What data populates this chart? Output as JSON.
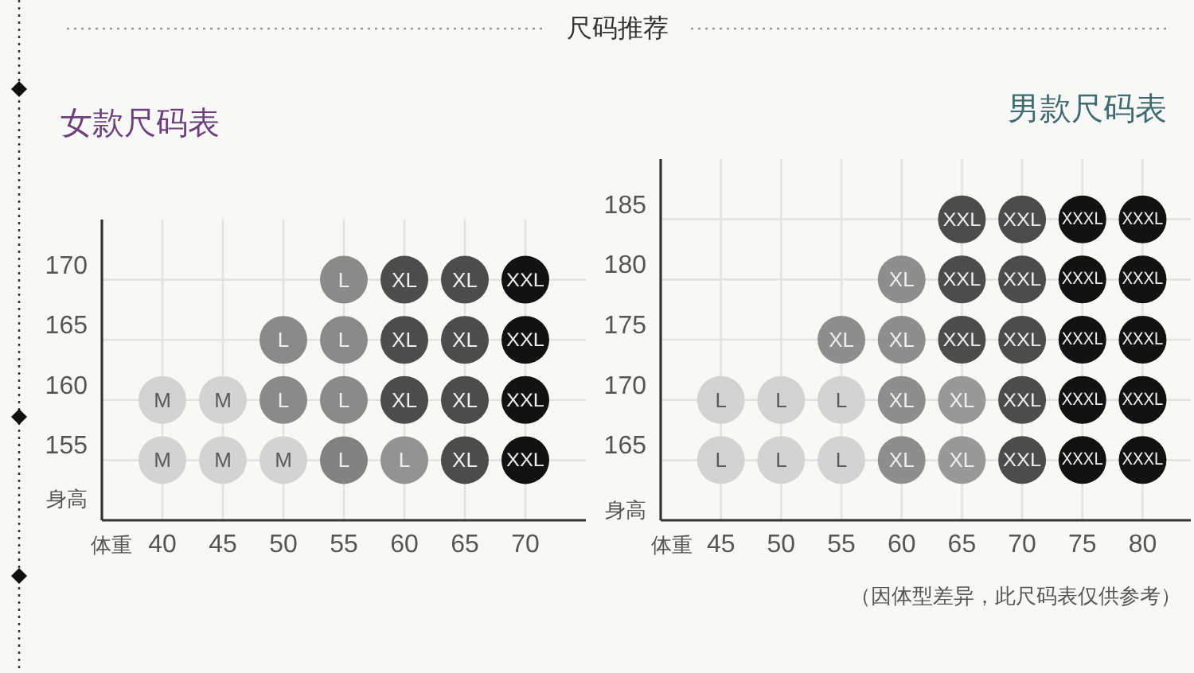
{
  "chart_data": [
    {
      "type": "scatter",
      "title": "女款尺码表",
      "xlabel": "体重",
      "ylabel": "身高",
      "annotations": [
        "尺码推荐"
      ],
      "xlim": [
        35,
        75
      ],
      "xticks": [
        40,
        45,
        50,
        55,
        60,
        65,
        70
      ],
      "ylim": [
        150,
        175
      ],
      "yticks": [
        155,
        160,
        165,
        170
      ],
      "grid": true,
      "marker": "circle",
      "series": [
        {
          "x": [
            55,
            60,
            65,
            70,
            50,
            55,
            60,
            65,
            70,
            40,
            45,
            50,
            55,
            60,
            65,
            70,
            40,
            45,
            50,
            55,
            60,
            65,
            70
          ],
          "values": [
            170,
            170,
            170,
            170,
            165,
            165,
            165,
            165,
            165,
            160,
            160,
            160,
            160,
            160,
            160,
            160,
            155,
            155,
            155,
            155,
            155,
            155,
            155
          ],
          "colors": [
            "#8a8a8a",
            "#4c4c4c",
            "#4c4c4c",
            "#121212",
            "#8a8a8a",
            "#8a8a8a",
            "#4c4c4c",
            "#4c4c4c",
            "#121212",
            "#d3d3d3",
            "#d3d3d3",
            "#8a8a8a",
            "#8a8a8a",
            "#4c4c4c",
            "#4c4c4c",
            "#121212",
            "#d3d3d3",
            "#d3d3d3",
            "#d3d3d3",
            "#828282",
            "#939393",
            "#4c4c4c",
            "#121212"
          ],
          "value_labels": [
            "L",
            "XL",
            "XL",
            "XXL",
            "L",
            "L",
            "XL",
            "XL",
            "XXL",
            "M",
            "M",
            "L",
            "L",
            "XL",
            "XL",
            "XXL",
            "M",
            "M",
            "M",
            "L",
            "L",
            "XL",
            "XXL"
          ]
        }
      ]
    },
    {
      "type": "scatter",
      "title": "男款尺码表",
      "xlabel": "体重",
      "ylabel": "身高",
      "annotations": [
        "（因体型差异，此尺码表仅供参考）"
      ],
      "xlim": [
        40,
        84
      ],
      "xticks": [
        45,
        50,
        55,
        60,
        65,
        70,
        75,
        80
      ],
      "ylim": [
        160,
        190
      ],
      "yticks": [
        165,
        170,
        175,
        180,
        185
      ],
      "grid": true,
      "marker": "circle",
      "series": [
        {
          "x": [
            65,
            70,
            75,
            80,
            60,
            65,
            70,
            75,
            80,
            55,
            60,
            65,
            70,
            75,
            80,
            45,
            50,
            55,
            60,
            65,
            70,
            75,
            80,
            45,
            50,
            55,
            60,
            65,
            70,
            75,
            80
          ],
          "values": [
            185,
            185,
            185,
            185,
            180,
            180,
            180,
            180,
            180,
            175,
            175,
            175,
            175,
            175,
            175,
            170,
            170,
            170,
            170,
            170,
            170,
            170,
            170,
            165,
            165,
            165,
            165,
            165,
            165,
            165,
            165
          ],
          "colors": [
            "#4c4c4c",
            "#4c4c4c",
            "#121212",
            "#121212",
            "#8e8e8e",
            "#4c4c4c",
            "#4c4c4c",
            "#121212",
            "#121212",
            "#8e8e8e",
            "#8e8e8e",
            "#4c4c4c",
            "#4c4c4c",
            "#121212",
            "#121212",
            "#d3d3d3",
            "#d3d3d3",
            "#d3d3d3",
            "#8e8e8e",
            "#999999",
            "#4c4c4c",
            "#121212",
            "#121212",
            "#d3d3d3",
            "#d3d3d3",
            "#d3d3d3",
            "#8e8e8e",
            "#999999",
            "#4c4c4c",
            "#121212",
            "#121212"
          ],
          "value_labels": [
            "XXL",
            "XXL",
            "XXXL",
            "XXXL",
            "XL",
            "XXL",
            "XXL",
            "XXXL",
            "XXXL",
            "XL",
            "XL",
            "XXL",
            "XXL",
            "XXXL",
            "XXXL",
            "L",
            "L",
            "L",
            "XL",
            "XL",
            "XXL",
            "XXXL",
            "XXXL",
            "L",
            "L",
            "L",
            "XL",
            "XL",
            "XXL",
            "XXXL",
            "XXXL"
          ]
        }
      ]
    }
  ]
}
